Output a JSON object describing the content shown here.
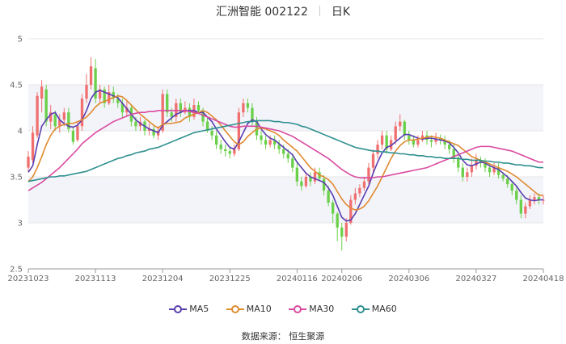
{
  "header": {
    "title": "汇洲智能 002122",
    "period": "日K"
  },
  "source_label": "数据来源：  恒生聚源",
  "colors": {
    "up": "#f07070",
    "down": "#6ad04a",
    "MA5": "#5a3db0",
    "MA10": "#e08a30",
    "MA30": "#d94aa0",
    "MA60": "#2f8f8f"
  },
  "chart_data": {
    "type": "candlestick",
    "title": "汇洲智能 002122",
    "ylim": [
      2.5,
      5
    ],
    "yticks": [
      "2.5",
      "3",
      "3.5",
      "4",
      "4.5",
      "5"
    ],
    "xtick_labels": [
      "20231023",
      "20231113",
      "20231204",
      "20231225",
      "20240116",
      "20240206",
      "20240306",
      "20240327",
      "20240418"
    ],
    "xtick_index": [
      0,
      15,
      30,
      45,
      60,
      70,
      85,
      100,
      115
    ],
    "series": [
      {
        "name": "MA5",
        "key": "ma5"
      },
      {
        "name": "MA10",
        "key": "ma10"
      },
      {
        "name": "MA30",
        "key": "ma30"
      },
      {
        "name": "MA60",
        "key": "ma60"
      }
    ],
    "dates": [
      "20231023",
      "20231024",
      "20231025",
      "20231026",
      "20231027",
      "20231030",
      "20231031",
      "20231101",
      "20231102",
      "20231103",
      "20231106",
      "20231107",
      "20231108",
      "20231109",
      "20231110",
      "20231113",
      "20231114",
      "20231115",
      "20231116",
      "20231117",
      "20231120",
      "20231121",
      "20231122",
      "20231123",
      "20231124",
      "20231127",
      "20231128",
      "20231129",
      "20231130",
      "20231201",
      "20231204",
      "20231205",
      "20231206",
      "20231207",
      "20231208",
      "20231211",
      "20231212",
      "20231213",
      "20231214",
      "20231215",
      "20231218",
      "20231219",
      "20231220",
      "20231221",
      "20231222",
      "20231225",
      "20231226",
      "20231227",
      "20231228",
      "20231229",
      "20240102",
      "20240103",
      "20240104",
      "20240105",
      "20240108",
      "20240109",
      "20240110",
      "20240111",
      "20240112",
      "20240115",
      "20240116",
      "20240117",
      "20240118",
      "20240119",
      "20240122",
      "20240123",
      "20240124",
      "20240125",
      "20240126",
      "20240129",
      "20240206",
      "20240207",
      "20240208",
      "20240219",
      "20240220",
      "20240221",
      "20240222",
      "20240223",
      "20240226",
      "20240227",
      "20240228",
      "20240229",
      "20240301",
      "20240304",
      "20240305",
      "20240306",
      "20240307",
      "20240308",
      "20240311",
      "20240312",
      "20240313",
      "20240314",
      "20240315",
      "20240318",
      "20240319",
      "20240320",
      "20240321",
      "20240322",
      "20240325",
      "20240326",
      "20240327",
      "20240328",
      "20240329",
      "20240401",
      "20240402",
      "20240403",
      "20240408",
      "20240409",
      "20240410",
      "20240411",
      "20240412",
      "20240415",
      "20240416",
      "20240417",
      "20240418",
      "20240418"
    ],
    "candles": [
      [
        3.6,
        3.72,
        3.55,
        3.78
      ],
      [
        3.68,
        3.98,
        3.65,
        4.05
      ],
      [
        3.95,
        4.38,
        3.92,
        4.42
      ],
      [
        4.35,
        4.48,
        4.2,
        4.55
      ],
      [
        4.45,
        4.1,
        4.05,
        4.5
      ],
      [
        4.1,
        4.2,
        4.02,
        4.28
      ],
      [
        4.18,
        4.05,
        4.0,
        4.22
      ],
      [
        4.05,
        4.12,
        3.98,
        4.18
      ],
      [
        4.12,
        4.2,
        4.05,
        4.25
      ],
      [
        4.2,
        4.02,
        3.98,
        4.25
      ],
      [
        4.0,
        3.88,
        3.85,
        4.05
      ],
      [
        3.9,
        4.05,
        3.88,
        4.1
      ],
      [
        4.05,
        4.35,
        4.0,
        4.4
      ],
      [
        4.35,
        4.5,
        4.3,
        4.62
      ],
      [
        4.5,
        4.7,
        4.45,
        4.8
      ],
      [
        4.68,
        4.35,
        4.3,
        4.78
      ],
      [
        4.35,
        4.45,
        4.3,
        4.5
      ],
      [
        4.45,
        4.3,
        4.25,
        4.48
      ],
      [
        4.3,
        4.42,
        4.28,
        4.5
      ],
      [
        4.42,
        4.35,
        4.3,
        4.48
      ],
      [
        4.35,
        4.3,
        4.25,
        4.4
      ],
      [
        4.3,
        4.2,
        4.15,
        4.35
      ],
      [
        4.2,
        4.25,
        4.15,
        4.32
      ],
      [
        4.25,
        4.1,
        4.05,
        4.28
      ],
      [
        4.1,
        4.05,
        4.0,
        4.15
      ],
      [
        4.05,
        4.1,
        4.0,
        4.15
      ],
      [
        4.1,
        4.0,
        3.95,
        4.12
      ],
      [
        4.0,
        4.02,
        3.95,
        4.08
      ],
      [
        4.02,
        3.95,
        3.92,
        4.05
      ],
      [
        3.95,
        4.0,
        3.9,
        4.05
      ],
      [
        4.0,
        4.4,
        3.98,
        4.45
      ],
      [
        4.4,
        4.2,
        4.15,
        4.45
      ],
      [
        4.2,
        4.15,
        4.1,
        4.25
      ],
      [
        4.15,
        4.3,
        4.1,
        4.35
      ],
      [
        4.3,
        4.2,
        4.15,
        4.35
      ],
      [
        4.2,
        4.25,
        4.18,
        4.32
      ],
      [
        4.25,
        4.15,
        4.1,
        4.3
      ],
      [
        4.15,
        4.28,
        4.12,
        4.35
      ],
      [
        4.28,
        4.22,
        4.18,
        4.32
      ],
      [
        4.22,
        4.1,
        4.05,
        4.25
      ],
      [
        4.1,
        4.0,
        3.98,
        4.15
      ],
      [
        4.0,
        3.95,
        3.9,
        4.05
      ],
      [
        3.95,
        3.85,
        3.8,
        4.0
      ],
      [
        3.85,
        3.8,
        3.75,
        3.9
      ],
      [
        3.8,
        3.78,
        3.72,
        3.85
      ],
      [
        3.78,
        3.75,
        3.7,
        3.82
      ],
      [
        3.75,
        3.8,
        3.72,
        3.85
      ],
      [
        3.8,
        4.2,
        3.78,
        4.25
      ],
      [
        4.2,
        4.3,
        4.15,
        4.35
      ],
      [
        4.3,
        4.25,
        4.2,
        4.35
      ],
      [
        4.25,
        4.1,
        4.05,
        4.3
      ],
      [
        4.1,
        3.95,
        3.9,
        4.15
      ],
      [
        3.95,
        3.9,
        3.85,
        4.0
      ],
      [
        3.9,
        3.85,
        3.8,
        3.95
      ],
      [
        3.85,
        3.9,
        3.82,
        3.95
      ],
      [
        3.9,
        3.85,
        3.8,
        3.95
      ],
      [
        3.85,
        3.8,
        3.75,
        3.9
      ],
      [
        3.8,
        3.75,
        3.7,
        3.85
      ],
      [
        3.75,
        3.7,
        3.65,
        3.8
      ],
      [
        3.7,
        3.6,
        3.55,
        3.75
      ],
      [
        3.6,
        3.45,
        3.4,
        3.65
      ],
      [
        3.45,
        3.4,
        3.35,
        3.5
      ],
      [
        3.4,
        3.5,
        3.38,
        3.55
      ],
      [
        3.5,
        3.45,
        3.4,
        3.55
      ],
      [
        3.45,
        3.55,
        3.42,
        3.6
      ],
      [
        3.55,
        3.48,
        3.45,
        3.6
      ],
      [
        3.48,
        3.35,
        3.3,
        3.52
      ],
      [
        3.35,
        3.22,
        3.18,
        3.4
      ],
      [
        3.22,
        3.1,
        3.0,
        3.25
      ],
      [
        3.1,
        2.95,
        2.8,
        3.12
      ],
      [
        2.95,
        2.85,
        2.7,
        3.0
      ],
      [
        2.85,
        3.0,
        2.8,
        3.05
      ],
      [
        3.0,
        3.25,
        2.98,
        3.3
      ],
      [
        3.25,
        3.32,
        3.2,
        3.38
      ],
      [
        3.32,
        3.38,
        3.28,
        3.42
      ],
      [
        3.38,
        3.45,
        3.35,
        3.5
      ],
      [
        3.45,
        3.6,
        3.42,
        3.65
      ],
      [
        3.6,
        3.75,
        3.55,
        3.8
      ],
      [
        3.75,
        3.85,
        3.7,
        3.9
      ],
      [
        3.85,
        3.95,
        3.8,
        4.0
      ],
      [
        3.95,
        3.8,
        3.75,
        4.0
      ],
      [
        3.8,
        3.9,
        3.78,
        3.95
      ],
      [
        3.9,
        4.05,
        3.85,
        4.1
      ],
      [
        4.05,
        4.1,
        4.0,
        4.18
      ],
      [
        4.1,
        3.95,
        3.9,
        4.12
      ],
      [
        3.95,
        3.9,
        3.85,
        4.0
      ],
      [
        3.9,
        3.85,
        3.82,
        3.95
      ],
      [
        3.85,
        3.9,
        3.82,
        3.95
      ],
      [
        3.9,
        3.95,
        3.88,
        4.0
      ],
      [
        3.95,
        3.9,
        3.85,
        4.0
      ],
      [
        3.9,
        3.88,
        3.82,
        3.95
      ],
      [
        3.88,
        3.92,
        3.85,
        3.98
      ],
      [
        3.92,
        3.9,
        3.85,
        3.96
      ],
      [
        3.9,
        3.85,
        3.8,
        3.95
      ],
      [
        3.85,
        3.8,
        3.75,
        3.9
      ],
      [
        3.8,
        3.7,
        3.65,
        3.85
      ],
      [
        3.7,
        3.6,
        3.55,
        3.75
      ],
      [
        3.6,
        3.5,
        3.45,
        3.65
      ],
      [
        3.5,
        3.55,
        3.45,
        3.6
      ],
      [
        3.55,
        3.62,
        3.5,
        3.7
      ],
      [
        3.62,
        3.68,
        3.58,
        3.75
      ],
      [
        3.68,
        3.65,
        3.6,
        3.72
      ],
      [
        3.65,
        3.6,
        3.55,
        3.7
      ],
      [
        3.6,
        3.55,
        3.5,
        3.65
      ],
      [
        3.55,
        3.6,
        3.52,
        3.65
      ],
      [
        3.6,
        3.52,
        3.48,
        3.65
      ],
      [
        3.52,
        3.48,
        3.45,
        3.55
      ],
      [
        3.48,
        3.42,
        3.38,
        3.52
      ],
      [
        3.42,
        3.35,
        3.3,
        3.45
      ],
      [
        3.35,
        3.25,
        3.2,
        3.4
      ],
      [
        3.25,
        3.1,
        3.05,
        3.3
      ],
      [
        3.1,
        3.18,
        3.05,
        3.22
      ],
      [
        3.18,
        3.25,
        3.15,
        3.3
      ],
      [
        3.25,
        3.28,
        3.2,
        3.32
      ],
      [
        3.28,
        3.25,
        3.2,
        3.32
      ],
      [
        3.25,
        3.25,
        3.2,
        3.3
      ]
    ],
    "ma5": [
      3.55,
      3.62,
      3.85,
      4.05,
      4.12,
      4.18,
      4.2,
      4.12,
      4.08,
      4.05,
      4.04,
      4.06,
      4.12,
      4.22,
      4.35,
      4.42,
      4.44,
      4.42,
      4.4,
      4.38,
      4.36,
      4.3,
      4.24,
      4.18,
      4.12,
      4.08,
      4.05,
      4.02,
      4.0,
      3.98,
      4.06,
      4.1,
      4.14,
      4.18,
      4.2,
      4.22,
      4.22,
      4.22,
      4.2,
      4.2,
      4.15,
      4.1,
      4.02,
      3.95,
      3.88,
      3.82,
      3.8,
      3.88,
      3.98,
      4.08,
      4.12,
      4.1,
      4.02,
      3.96,
      3.92,
      3.9,
      3.86,
      3.82,
      3.78,
      3.74,
      3.66,
      3.6,
      3.54,
      3.5,
      3.48,
      3.46,
      3.44,
      3.38,
      3.3,
      3.18,
      3.06,
      3.02,
      3.03,
      3.1,
      3.2,
      3.3,
      3.4,
      3.54,
      3.66,
      3.76,
      3.82,
      3.84,
      3.88,
      3.92,
      3.96,
      3.96,
      3.94,
      3.92,
      3.91,
      3.92,
      3.92,
      3.91,
      3.9,
      3.89,
      3.87,
      3.82,
      3.76,
      3.68,
      3.63,
      3.62,
      3.64,
      3.66,
      3.65,
      3.62,
      3.6,
      3.58,
      3.54,
      3.5,
      3.45,
      3.4,
      3.33,
      3.27,
      3.25,
      3.24,
      3.25,
      3.25
    ],
    "ma10": [
      3.45,
      3.5,
      3.6,
      3.72,
      3.85,
      3.95,
      4.02,
      4.05,
      4.07,
      4.08,
      4.08,
      4.1,
      4.12,
      4.15,
      4.2,
      4.26,
      4.3,
      4.32,
      4.34,
      4.36,
      4.38,
      4.37,
      4.33,
      4.28,
      4.23,
      4.18,
      4.14,
      4.1,
      4.06,
      4.03,
      4.07,
      4.08,
      4.08,
      4.09,
      4.1,
      4.14,
      4.16,
      4.18,
      4.2,
      4.22,
      4.2,
      4.16,
      4.12,
      4.06,
      4.0,
      3.94,
      3.88,
      3.85,
      3.88,
      3.94,
      3.98,
      4.02,
      4.03,
      4.02,
      4.0,
      3.98,
      3.95,
      3.9,
      3.86,
      3.82,
      3.78,
      3.72,
      3.66,
      3.6,
      3.56,
      3.52,
      3.5,
      3.47,
      3.42,
      3.34,
      3.26,
      3.2,
      3.16,
      3.14,
      3.15,
      3.18,
      3.24,
      3.32,
      3.4,
      3.5,
      3.6,
      3.7,
      3.78,
      3.84,
      3.88,
      3.9,
      3.9,
      3.91,
      3.92,
      3.93,
      3.94,
      3.93,
      3.92,
      3.9,
      3.88,
      3.86,
      3.84,
      3.8,
      3.76,
      3.72,
      3.7,
      3.68,
      3.66,
      3.64,
      3.62,
      3.6,
      3.58,
      3.56,
      3.53,
      3.5,
      3.46,
      3.42,
      3.38,
      3.34,
      3.3,
      3.3
    ],
    "ma30": [
      3.35,
      3.38,
      3.41,
      3.44,
      3.48,
      3.52,
      3.56,
      3.6,
      3.65,
      3.7,
      3.75,
      3.8,
      3.86,
      3.9,
      3.94,
      3.98,
      4.01,
      4.04,
      4.07,
      4.1,
      4.12,
      4.14,
      4.16,
      4.18,
      4.19,
      4.2,
      4.2,
      4.21,
      4.21,
      4.22,
      4.22,
      4.22,
      4.22,
      4.22,
      4.22,
      4.22,
      4.21,
      4.2,
      4.19,
      4.17,
      4.15,
      4.13,
      4.11,
      4.09,
      4.07,
      4.05,
      4.04,
      4.04,
      4.05,
      4.05,
      4.05,
      4.05,
      4.04,
      4.03,
      4.02,
      4.01,
      4.0,
      3.98,
      3.96,
      3.94,
      3.91,
      3.88,
      3.85,
      3.82,
      3.79,
      3.76,
      3.73,
      3.7,
      3.66,
      3.62,
      3.58,
      3.55,
      3.52,
      3.5,
      3.49,
      3.49,
      3.49,
      3.49,
      3.5,
      3.5,
      3.51,
      3.52,
      3.53,
      3.54,
      3.55,
      3.56,
      3.57,
      3.58,
      3.59,
      3.6,
      3.62,
      3.64,
      3.66,
      3.68,
      3.7,
      3.72,
      3.74,
      3.76,
      3.78,
      3.8,
      3.82,
      3.83,
      3.83,
      3.83,
      3.82,
      3.81,
      3.8,
      3.79,
      3.78,
      3.76,
      3.74,
      3.72,
      3.7,
      3.68,
      3.66,
      3.66
    ],
    "ma60": [
      3.45,
      3.46,
      3.47,
      3.48,
      3.49,
      3.5,
      3.5,
      3.51,
      3.51,
      3.52,
      3.53,
      3.54,
      3.55,
      3.56,
      3.58,
      3.6,
      3.62,
      3.64,
      3.66,
      3.68,
      3.7,
      3.71,
      3.73,
      3.74,
      3.76,
      3.77,
      3.78,
      3.8,
      3.81,
      3.82,
      3.84,
      3.86,
      3.88,
      3.9,
      3.92,
      3.94,
      3.96,
      3.98,
      3.99,
      4.0,
      4.01,
      4.02,
      4.03,
      4.04,
      4.05,
      4.06,
      4.07,
      4.08,
      4.09,
      4.1,
      4.1,
      4.11,
      4.11,
      4.11,
      4.11,
      4.1,
      4.1,
      4.09,
      4.09,
      4.08,
      4.07,
      4.05,
      4.04,
      4.02,
      4.0,
      3.98,
      3.96,
      3.94,
      3.92,
      3.9,
      3.88,
      3.86,
      3.84,
      3.82,
      3.81,
      3.8,
      3.79,
      3.78,
      3.78,
      3.77,
      3.77,
      3.76,
      3.76,
      3.75,
      3.75,
      3.74,
      3.74,
      3.73,
      3.73,
      3.72,
      3.72,
      3.71,
      3.71,
      3.7,
      3.7,
      3.7,
      3.7,
      3.69,
      3.69,
      3.68,
      3.68,
      3.68,
      3.67,
      3.67,
      3.66,
      3.66,
      3.65,
      3.65,
      3.64,
      3.63,
      3.63,
      3.62,
      3.62,
      3.61,
      3.6,
      3.6
    ]
  }
}
